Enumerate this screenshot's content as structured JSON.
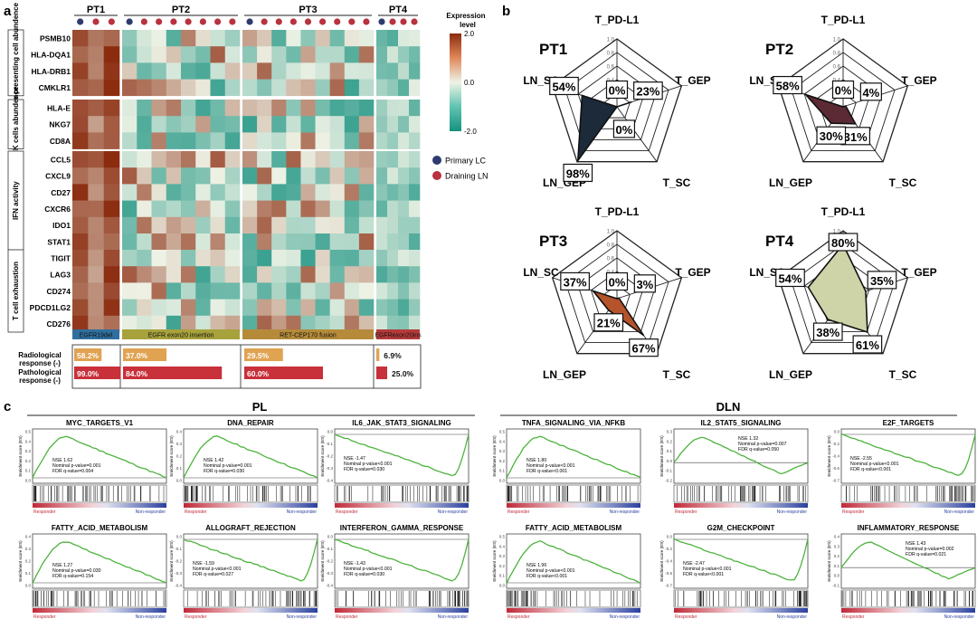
{
  "panels": {
    "a": "a",
    "b": "b",
    "c": "c"
  },
  "heatmap": {
    "patients": [
      "PT1",
      "PT2",
      "PT3",
      "PT4"
    ],
    "sample_counts": [
      3,
      8,
      9,
      4
    ],
    "sample_types": [
      [
        "primary",
        "drain",
        "drain"
      ],
      [
        "primary",
        "drain",
        "drain",
        "drain",
        "drain",
        "drain",
        "drain",
        "drain"
      ],
      [
        "primary",
        "drain",
        "drain",
        "drain",
        "drain",
        "drain",
        "drain",
        "drain",
        "drain"
      ],
      [
        "primary",
        "drain",
        "drain",
        "drain"
      ]
    ],
    "groups": [
      {
        "label": "Antigen presenting cell abundence",
        "genes": [
          "PSMB10",
          "HLA-DQA1",
          "HLA-DRB1",
          "CMKLR1"
        ]
      },
      {
        "label": "T/NK cells abundence",
        "genes": [
          "HLA-E",
          "NKG7",
          "CD8A"
        ]
      },
      {
        "label": "IFN activity",
        "genes": [
          "CCL5",
          "CXCL9",
          "CD27",
          "CXCR6",
          "IDO1",
          "STAT1"
        ]
      },
      {
        "label": "T cell exhaustion",
        "genes": [
          "TIGIT",
          "LAG3",
          "CD274",
          "PDCD1LG2",
          "CD276"
        ]
      }
    ],
    "mutations": [
      {
        "label": "EGFR19del",
        "color": "#2f6f9e"
      },
      {
        "label": "EGFR exon20 insertion",
        "color": "#a8a23c"
      },
      {
        "label": "RET-CEP170 fusion",
        "color": "#b58b3a"
      },
      {
        "label": "EGFRexon20ins",
        "color": "#b53a3a"
      }
    ],
    "legend_title": "Expression level",
    "legend_ticks": [
      "2.0",
      "0.0",
      "-2.0"
    ],
    "sample_legend": [
      {
        "label": "Primary LC",
        "color": "#2e3b6e"
      },
      {
        "label": "Draining LN",
        "color": "#b8323f"
      }
    ],
    "colors": {
      "high": "#8b2c0f",
      "mid": "#eef3e6",
      "low": "#17917f"
    },
    "responses": {
      "radiological_label": "Radiological response (-)",
      "pathological_label": "Pathological response (-)",
      "radiological": [
        {
          "text": "58.2%",
          "fraction": 0.582
        },
        {
          "text": "37.0%",
          "fraction": 0.37
        },
        {
          "text": "29.5%",
          "fraction": 0.295
        },
        {
          "text": "6.9%",
          "fraction": 0.069
        }
      ],
      "pathological": [
        {
          "text": "99.0%",
          "fraction": 0.99
        },
        {
          "text": "84.0%",
          "fraction": 0.84
        },
        {
          "text": "60.0%",
          "fraction": 0.6
        },
        {
          "text": "25.0%",
          "fraction": 0.25
        }
      ],
      "radiological_color": "#e0a352",
      "pathological_color": "#c8303a"
    }
  },
  "radar": {
    "axes": [
      "T_PD-L1",
      "T_GEP",
      "T_SC",
      "LN_GEP",
      "LN_SC"
    ],
    "ticks": [
      "0.2",
      "0.4",
      "0.6",
      "0.8",
      "1.0"
    ],
    "patients": [
      {
        "name": "PT1",
        "values": [
          0.0,
          0.23,
          0.0,
          0.98,
          0.54
        ],
        "labels": [
          "0%",
          "23%",
          "0%",
          "98%",
          "54%"
        ],
        "color": "#1c2a3a"
      },
      {
        "name": "PT2",
        "values": [
          0.0,
          0.04,
          0.31,
          0.3,
          0.58
        ],
        "labels": [
          "0%",
          "4%",
          "31%",
          "30%",
          "58%"
        ],
        "color": "#5b2a35"
      },
      {
        "name": "PT3",
        "values": [
          0.0,
          0.03,
          0.67,
          0.21,
          0.37
        ],
        "labels": [
          "0%",
          "3%",
          "67%",
          "21%",
          "37%"
        ],
        "color": "#b5532b"
      },
      {
        "name": "PT4",
        "values": [
          0.8,
          0.35,
          0.61,
          0.38,
          0.54
        ],
        "labels": [
          "80%",
          "35%",
          "61%",
          "38%",
          "54%"
        ],
        "color": "#cfd3a8"
      }
    ]
  },
  "gsea": {
    "groups": [
      "PL",
      "DLN"
    ],
    "responder": "Responder",
    "nonresponder": "Non-responder",
    "y_axis_label": "Enrichment score (ES)",
    "plots": [
      {
        "title": "MYC_TARGETS_V1",
        "nes": "NSE 1.62",
        "p": "Nominal p-value=0.001",
        "fdr": "FDR q-value=0.004",
        "sign": "pos",
        "ticks": [
          "0.5",
          "0.4",
          "0.3",
          "0.2",
          "0.1",
          "0.0"
        ]
      },
      {
        "title": "DNA_REPAIR",
        "nes": "NSE 1.42",
        "p": "Nominal p-value=0.001",
        "fdr": "FDR q-value=0.030",
        "sign": "pos",
        "ticks": [
          "0.4",
          "0.3",
          "0.2",
          "0.1",
          "0.0"
        ]
      },
      {
        "title": "IL6_JAK_STAT3_SIGNALING",
        "nes": "NSE -1.47",
        "p": "Nominal p-value<0.001",
        "fdr": "FDR q-value=0.030",
        "sign": "neg",
        "ticks": [
          "0.0",
          "-0.1",
          "-0.2",
          "-0.3",
          "-0.4"
        ]
      },
      {
        "title": "TNFA_SIGNALING_VIA_NFKB",
        "nes": "NSE 1.80",
        "p": "Nominal p-value<0.001",
        "fdr": "FDR q-value<0.001",
        "sign": "pos",
        "ticks": [
          "0.5",
          "0.4",
          "0.3",
          "0.2",
          "0.1",
          "0.0"
        ]
      },
      {
        "title": "IL2_STAT5_SIGNALING",
        "nes": "NSE 1.32",
        "p": "Nominal p-value=0.007",
        "fdr": "FDR q-value=0.050",
        "sign": "mid",
        "ticks": [
          "0.3",
          "0.2",
          "0.1",
          "0.0",
          "-0.1",
          "-0.2"
        ]
      },
      {
        "title": "E2F_TARGETS",
        "nes": "NSE -2.55",
        "p": "Nominal p-value<0.001",
        "fdr": "FDR q-value<0.001",
        "sign": "neg",
        "ticks": [
          "0.0",
          "-0.2",
          "-0.4",
          "-0.6",
          "-0.7"
        ]
      },
      {
        "title": "FATTY_ACID_METABOLISM",
        "nes": "NSE 1.27",
        "p": "Nominal p-value=0.030",
        "fdr": "FDR q-value=0.154",
        "sign": "pos",
        "ticks": [
          "0.4",
          "0.3",
          "0.2",
          "0.1",
          "0.0"
        ]
      },
      {
        "title": "ALLOGRAFT_REJECTION",
        "nes": "NSE -1.59",
        "p": "Nominal p-value<0.001",
        "fdr": "FDR q-value=0.027",
        "sign": "neg",
        "ticks": [
          "0.0",
          "-0.1",
          "-0.2",
          "-0.3",
          "-0.4"
        ]
      },
      {
        "title": "INTERFERON_GAMMA_RESPONSE",
        "nes": "NSE -1.43",
        "p": "Nominal p-value<0.001",
        "fdr": "FDR q-value=0.030",
        "sign": "neg",
        "ticks": [
          "0.0",
          "-0.1",
          "-0.2",
          "-0.3",
          "-0.4"
        ]
      },
      {
        "title": "FATTY_ACID_METABOLISM",
        "nes": "NSE 1.96",
        "p": "Nominal p-value<0.001",
        "fdr": "FDR q-value<0.001",
        "sign": "pos",
        "ticks": [
          "0.5",
          "0.4",
          "0.3",
          "0.2",
          "0.1",
          "0.0"
        ]
      },
      {
        "title": "G2M_CHECKPOINT",
        "nes": "NSE -2.47",
        "p": "Nominal p-value<0.001",
        "fdr": "FDR q-value<0.001",
        "sign": "neg",
        "ticks": [
          "0.0",
          "-0.2",
          "-0.4",
          "-0.6",
          "-0.7"
        ]
      },
      {
        "title": "INFLAMMATORY_RESPONSE",
        "nes": "NSE 1.43",
        "p": "Nominal p-value=0.002",
        "fdr": "FDR q-value=0.021",
        "sign": "mid",
        "ticks": [
          "0.4",
          "0.3",
          "0.2",
          "0.1",
          "0.0",
          "-0.1"
        ]
      }
    ]
  },
  "chart_data": [
    {
      "type": "heatmap",
      "title": "",
      "columns": [
        "PT1",
        "PT2",
        "PT3",
        "PT4"
      ],
      "rows": [
        "PSMB10",
        "HLA-DQA1",
        "HLA-DRB1",
        "CMKLR1",
        "HLA-E",
        "NKG7",
        "CD8A",
        "CCL5",
        "CXCL9",
        "CD27",
        "CXCR6",
        "IDO1",
        "STAT1",
        "TIGIT",
        "LAG3",
        "CD274",
        "PDCD1LG2",
        "CD276"
      ],
      "value_range": [
        -2.0,
        2.0
      ]
    },
    {
      "type": "bar",
      "categories": [
        "PT1",
        "PT2",
        "PT3",
        "PT4"
      ],
      "series": [
        {
          "name": "Radiological response (-)",
          "values": [
            58.2,
            37.0,
            29.5,
            6.9
          ]
        },
        {
          "name": "Pathological response (-)",
          "values": [
            99.0,
            84.0,
            60.0,
            25.0
          ]
        }
      ]
    },
    {
      "type": "radar",
      "categories": [
        "T_PD-L1",
        "T_GEP",
        "T_SC",
        "LN_GEP",
        "LN_SC"
      ],
      "series": [
        {
          "name": "PT1",
          "values": [
            0,
            23,
            0,
            98,
            54
          ]
        },
        {
          "name": "PT2",
          "values": [
            0,
            4,
            31,
            30,
            58
          ]
        },
        {
          "name": "PT3",
          "values": [
            0,
            3,
            67,
            21,
            37
          ]
        },
        {
          "name": "PT4",
          "values": [
            80,
            35,
            61,
            38,
            54
          ]
        }
      ],
      "ylim": [
        0,
        1.0
      ]
    },
    {
      "type": "line",
      "series": [
        {
          "name": "MYC_TARGETS_V1",
          "values": [
            1.62
          ]
        },
        {
          "name": "DNA_REPAIR",
          "values": [
            1.42
          ]
        },
        {
          "name": "IL6_JAK_STAT3_SIGNALING",
          "values": [
            -1.47
          ]
        },
        {
          "name": "FATTY_ACID_METABOLISM",
          "values": [
            1.27
          ]
        },
        {
          "name": "ALLOGRAFT_REJECTION",
          "values": [
            -1.59
          ]
        },
        {
          "name": "INTERFERON_GAMMA_RESPONSE",
          "values": [
            -1.43
          ]
        },
        {
          "name": "TNFA_SIGNALING_VIA_NFKB",
          "values": [
            1.8
          ]
        },
        {
          "name": "IL2_STAT5_SIGNALING",
          "values": [
            1.32
          ]
        },
        {
          "name": "E2F_TARGETS",
          "values": [
            -2.55
          ]
        },
        {
          "name": "FATTY_ACID_METABOLISM",
          "values": [
            1.96
          ]
        },
        {
          "name": "G2M_CHECKPOINT",
          "values": [
            -2.47
          ]
        },
        {
          "name": "INFLAMMATORY_RESPONSE",
          "values": [
            1.43
          ]
        }
      ]
    }
  ]
}
